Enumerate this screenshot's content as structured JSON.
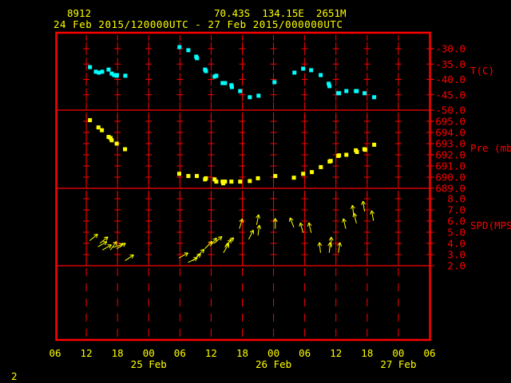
{
  "header": {
    "station_id": "8912",
    "location": "70.43S  134.15E  2651M",
    "period": "24 Feb 2015/120000UTC - 27 Feb 2015/000000UTC"
  },
  "footer": {
    "page_number": "2"
  },
  "colors": {
    "frame": "#ff0000",
    "text": "#ffff00",
    "temperature": "#00ffff",
    "pressure": "#ffff00",
    "wind": "#ffff00"
  },
  "x_axis": {
    "xlim": [
      "2015-02-24T06:00",
      "2015-02-27T06:00"
    ],
    "tick_labels": [
      "06",
      "12",
      "18",
      "00",
      "06",
      "12",
      "18",
      "00",
      "06",
      "12",
      "18",
      "00",
      "06"
    ],
    "date_labels": [
      {
        "label": "25 Feb",
        "at": "2015-02-25T00:00"
      },
      {
        "label": "26 Feb",
        "at": "2015-02-26T00:00"
      },
      {
        "label": "27 Feb",
        "at": "2015-02-27T00:00"
      }
    ]
  },
  "chart_data": [
    {
      "type": "scatter",
      "ylabel": "T(C)",
      "ylim": [
        -50,
        -30
      ],
      "tick_labels": [
        "-30.0",
        "-35.0",
        "-40.0",
        "-45.0",
        "-50.0"
      ],
      "color": "#00ffff",
      "points": [
        [
          "2015-02-24T12:42",
          -36.0
        ],
        [
          "2015-02-24T13:50",
          -37.5
        ],
        [
          "2015-02-24T14:25",
          -37.8
        ],
        [
          "2015-02-24T15:03",
          -37.5
        ],
        [
          "2015-02-24T16:17",
          -36.8
        ],
        [
          "2015-02-24T16:53",
          -38.1
        ],
        [
          "2015-02-24T17:21",
          -38.6
        ],
        [
          "2015-02-24T17:48",
          -38.8
        ],
        [
          "2015-02-24T17:54",
          -38.6
        ],
        [
          "2015-02-24T19:30",
          -38.8
        ],
        [
          "2015-02-25T05:55",
          -29.5
        ],
        [
          "2015-02-25T07:37",
          -30.5
        ],
        [
          "2015-02-25T09:08",
          -32.6
        ],
        [
          "2015-02-25T09:17",
          -33.1
        ],
        [
          "2015-02-25T10:50",
          -36.8
        ],
        [
          "2015-02-25T11:00",
          -37.3
        ],
        [
          "2015-02-25T12:40",
          -39.1
        ],
        [
          "2015-02-25T13:00",
          -38.8
        ],
        [
          "2015-02-25T14:12",
          -41.2
        ],
        [
          "2015-02-25T14:40",
          -41.2
        ],
        [
          "2015-02-25T15:54",
          -41.9
        ],
        [
          "2015-02-25T16:00",
          -42.5
        ],
        [
          "2015-02-25T17:35",
          -43.8
        ],
        [
          "2015-02-25T19:26",
          -45.8
        ],
        [
          "2015-02-25T21:07",
          -45.3
        ],
        [
          "2015-02-26T00:11",
          -40.9
        ],
        [
          "2015-02-26T04:01",
          -37.8
        ],
        [
          "2015-02-26T05:42",
          -36.5
        ],
        [
          "2015-02-26T07:14",
          -37.0
        ],
        [
          "2015-02-26T09:04",
          -38.6
        ],
        [
          "2015-02-26T10:36",
          -41.4
        ],
        [
          "2015-02-26T10:45",
          -42.2
        ],
        [
          "2015-02-26T12:27",
          -44.5
        ],
        [
          "2015-02-26T12:36",
          -44.5
        ],
        [
          "2015-02-26T14:00",
          -43.8
        ],
        [
          "2015-02-26T15:50",
          -43.8
        ],
        [
          "2015-02-26T16:00",
          -43.8
        ],
        [
          "2015-02-26T17:30",
          -44.5
        ],
        [
          "2015-02-26T19:21",
          -45.8
        ]
      ]
    },
    {
      "type": "scatter",
      "ylabel": "Pre (mb)",
      "ylim": [
        689,
        695
      ],
      "tick_labels": [
        "695.0",
        "694.0",
        "693.0",
        "692.0",
        "691.0",
        "690.0",
        "689.0"
      ],
      "color": "#ffff00",
      "points": [
        [
          "2015-02-24T12:42",
          695.1
        ],
        [
          "2015-02-24T14:20",
          694.45
        ],
        [
          "2015-02-24T15:00",
          694.2
        ],
        [
          "2015-02-24T16:17",
          693.6
        ],
        [
          "2015-02-24T16:40",
          693.5
        ],
        [
          "2015-02-24T16:53",
          693.3
        ],
        [
          "2015-02-24T17:51",
          693.0
        ],
        [
          "2015-02-24T19:27",
          692.5
        ],
        [
          "2015-02-25T05:52",
          690.3
        ],
        [
          "2015-02-25T07:37",
          690.1
        ],
        [
          "2015-02-25T09:15",
          690.1
        ],
        [
          "2015-02-25T10:50",
          689.8
        ],
        [
          "2015-02-25T11:00",
          689.9
        ],
        [
          "2015-02-25T12:40",
          689.8
        ],
        [
          "2015-02-25T13:00",
          689.6
        ],
        [
          "2015-02-25T14:12",
          689.6
        ],
        [
          "2015-02-25T14:20",
          689.45
        ],
        [
          "2015-02-25T14:40",
          689.6
        ],
        [
          "2015-02-25T15:54",
          689.6
        ],
        [
          "2015-02-25T17:35",
          689.6
        ],
        [
          "2015-02-25T19:26",
          689.65
        ],
        [
          "2015-02-25T21:00",
          689.9
        ],
        [
          "2015-02-26T00:20",
          690.1
        ],
        [
          "2015-02-26T03:55",
          689.95
        ],
        [
          "2015-02-26T05:42",
          690.3
        ],
        [
          "2015-02-26T07:22",
          690.45
        ],
        [
          "2015-02-26T09:06",
          690.9
        ],
        [
          "2015-02-26T10:47",
          691.4
        ],
        [
          "2015-02-26T11:00",
          691.45
        ],
        [
          "2015-02-26T12:27",
          691.9
        ],
        [
          "2015-02-26T12:36",
          691.95
        ],
        [
          "2015-02-26T14:00",
          692.0
        ],
        [
          "2015-02-26T15:50",
          692.4
        ],
        [
          "2015-02-26T16:02",
          692.25
        ],
        [
          "2015-02-26T17:28",
          692.5
        ],
        [
          "2015-02-26T17:37",
          692.45
        ],
        [
          "2015-02-26T19:21",
          692.9
        ]
      ]
    },
    {
      "type": "scatter",
      "subtype": "wind-arrows",
      "ylabel": "SPD(MPS)",
      "ylim": [
        2,
        8
      ],
      "tick_labels": [
        "8.0",
        "7.0",
        "6.0",
        "5.0",
        "4.0",
        "3.0",
        "2.0"
      ],
      "color": "#ffff00",
      "points": [
        {
          "t": "2015-02-24T12:38",
          "spd": 4.24,
          "dir": 51
        },
        {
          "t": "2015-02-24T14:14",
          "spd": 3.69,
          "dir": 60
        },
        {
          "t": "2015-02-24T14:36",
          "spd": 4.0,
          "dir": 51
        },
        {
          "t": "2015-02-24T15:06",
          "spd": 3.41,
          "dir": 60
        },
        {
          "t": "2015-02-24T16:38",
          "spd": 3.41,
          "dir": 36
        },
        {
          "t": "2015-02-24T17:09",
          "spd": 3.64,
          "dir": 72
        },
        {
          "t": "2015-02-24T17:51",
          "spd": 3.52,
          "dir": 58
        },
        {
          "t": "2015-02-24T19:27",
          "spd": 2.45,
          "dir": 56
        },
        {
          "t": "2015-02-25T05:49",
          "spd": 2.69,
          "dir": 61
        },
        {
          "t": "2015-02-25T07:34",
          "spd": 2.29,
          "dir": 63
        },
        {
          "t": "2015-02-25T08:29",
          "spd": 2.45,
          "dir": 49
        },
        {
          "t": "2015-02-25T09:15",
          "spd": 2.81,
          "dir": 45
        },
        {
          "t": "2015-02-25T10:47",
          "spd": 3.52,
          "dir": 45
        },
        {
          "t": "2015-02-25T11:48",
          "spd": 3.76,
          "dir": 39
        },
        {
          "t": "2015-02-25T12:34",
          "spd": 4.0,
          "dir": 49
        },
        {
          "t": "2015-02-25T14:22",
          "spd": 3.16,
          "dir": 31
        },
        {
          "t": "2015-02-25T14:37",
          "spd": 3.64,
          "dir": 40
        },
        {
          "t": "2015-02-25T14:52",
          "spd": 3.88,
          "dir": 48
        },
        {
          "t": "2015-02-25T17:26",
          "spd": 5.31,
          "dir": 17
        },
        {
          "t": "2015-02-25T19:13",
          "spd": 4.36,
          "dir": 27
        },
        {
          "t": "2015-02-25T20:45",
          "spd": 5.66,
          "dir": 11
        },
        {
          "t": "2015-02-25T21:00",
          "spd": 4.71,
          "dir": 8
        },
        {
          "t": "2015-02-26T00:20",
          "spd": 5.31,
          "dir": 0
        },
        {
          "t": "2015-02-26T03:55",
          "spd": 5.43,
          "dir": 338
        },
        {
          "t": "2015-02-26T05:42",
          "spd": 4.95,
          "dir": 344
        },
        {
          "t": "2015-02-26T07:14",
          "spd": 4.95,
          "dir": 347
        },
        {
          "t": "2015-02-26T09:02",
          "spd": 3.16,
          "dir": 354
        },
        {
          "t": "2015-02-26T10:43",
          "spd": 3.16,
          "dir": 5
        },
        {
          "t": "2015-02-26T11:05",
          "spd": 3.64,
          "dir": 0
        },
        {
          "t": "2015-02-26T12:27",
          "spd": 3.16,
          "dir": 10
        },
        {
          "t": "2015-02-26T13:53",
          "spd": 5.31,
          "dir": 347
        },
        {
          "t": "2015-02-26T15:26",
          "spd": 6.5,
          "dir": 352
        },
        {
          "t": "2015-02-26T15:56",
          "spd": 5.79,
          "dir": 347
        },
        {
          "t": "2015-02-26T17:30",
          "spd": 6.86,
          "dir": 351
        },
        {
          "t": "2015-02-26T19:14",
          "spd": 6.02,
          "dir": 349
        }
      ]
    }
  ]
}
